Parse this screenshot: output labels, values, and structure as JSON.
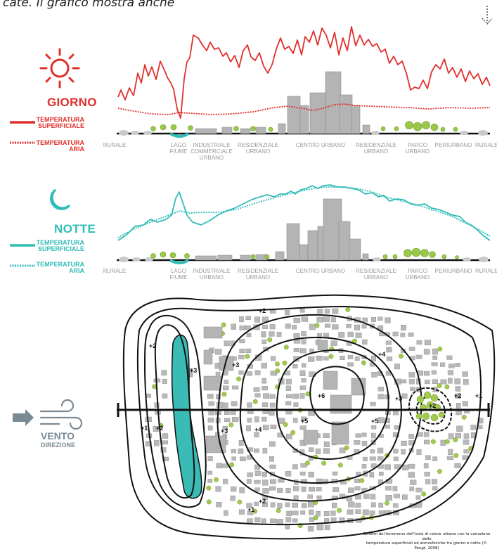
{
  "top_caption": "cate. Il grafico mostra anche",
  "colors": {
    "day": "#e0302d",
    "night": "#2fbdb7",
    "river": "#3bbbb5",
    "building": "#b4b4b4",
    "tree": "#9cc84a",
    "wind": "#7a8a94"
  },
  "icons": {
    "day": "sun-icon",
    "night": "moon-icon",
    "wind": "wind-icon",
    "corner": "dashed-arrow-down-icon"
  },
  "day": {
    "title": "GIORNO",
    "surface_label": [
      "TEMPERATURA",
      "SUPERFICIALE"
    ],
    "air_label": [
      "TEMPERATURA",
      "ARIA"
    ]
  },
  "night": {
    "title": "NOTTE",
    "surface_label": [
      "TEMPERATURA",
      "SUPERFICIALE"
    ],
    "air_label": [
      "TEMPERATURA",
      "ARIA"
    ]
  },
  "wind": {
    "title": "VENTO",
    "subtitle": "DIREZIONE"
  },
  "zones_day": [
    [
      "RURALE"
    ],
    [
      "LAGO",
      "FIUME"
    ],
    [
      "INDUSTRIALE",
      "COMMERCIALE",
      "URBANO"
    ],
    [
      "RESIDENZIALE",
      "URBANO"
    ],
    [
      "CENTRO URBANO"
    ],
    [
      "RESIDENZIALE",
      "URBANO"
    ],
    [
      "PARCO",
      "URBANO"
    ],
    [
      "PERIURBANO"
    ],
    [
      "RURALE"
    ]
  ],
  "zones_night": [
    [
      "RURALE"
    ],
    [
      "LAGO",
      "FIUME"
    ],
    [
      "INDUSTRIALE",
      "URBANO"
    ],
    [
      "RESIDENZIALE",
      "URBANO"
    ],
    [
      "CENTRO URBANO"
    ],
    [
      "RESIDENZIALE",
      "URBANO"
    ],
    [
      "PARCO",
      "URBANO"
    ],
    [
      "PERIURBANO"
    ],
    [
      "RURALE"
    ]
  ],
  "isotherm_labels": [
    "+2",
    "+2",
    "+3",
    "+3",
    "+4",
    "+6",
    "+3",
    "+2",
    "+2",
    "+1",
    "+1",
    "+2",
    "+3",
    "+4",
    "+5",
    "+5",
    "+2",
    "+1"
  ],
  "credit": [
    "Schemi del fenomeno dell'isola di calore urbano con la variazione delle",
    "temperature superficiali ed atmosferiche tra giorno e notte (© Peugt, 2008)"
  ]
}
